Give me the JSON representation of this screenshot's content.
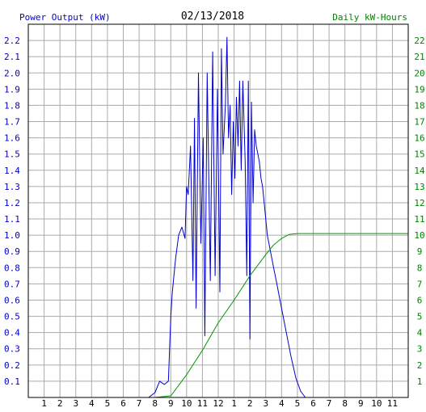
{
  "header": {
    "left_label": "Power Output (kW)",
    "date": "02/13/2018",
    "right_label": "Daily kW-Hours"
  },
  "colors": {
    "power": "#0000cc",
    "energy": "#009900",
    "grid": "#aaaaaa",
    "axis": "#000000",
    "left_text": "#0000cc",
    "right_text": "#008000"
  },
  "chart_data": {
    "type": "line",
    "grid": true,
    "x_tick_labels": [
      "1",
      "2",
      "3",
      "4",
      "5",
      "6",
      "7",
      "8",
      "9",
      "10",
      "11",
      "12",
      "1",
      "2",
      "3",
      "4",
      "5",
      "6",
      "7",
      "8",
      "9",
      "10",
      "11"
    ],
    "xlim": [
      0,
      24
    ],
    "y_left": {
      "label": "Power Output (kW)",
      "lim": [
        0,
        2.3
      ],
      "ticks": [
        "0.1",
        "0.2",
        "0.3",
        "0.4",
        "0.5",
        "0.6",
        "0.7",
        "0.8",
        "0.9",
        "1.0",
        "1.1",
        "1.2",
        "1.3",
        "1.4",
        "1.5",
        "1.6",
        "1.7",
        "1.8",
        "1.9",
        "2.0",
        "2.1",
        "2.2"
      ]
    },
    "y_right": {
      "label": "Daily kW-Hours",
      "lim": [
        0,
        23
      ],
      "ticks": [
        "1",
        "2",
        "3",
        "4",
        "5",
        "6",
        "7",
        "8",
        "9",
        "10",
        "11",
        "12",
        "13",
        "14",
        "15",
        "16",
        "17",
        "18",
        "19",
        "20",
        "21",
        "22"
      ]
    },
    "series": [
      {
        "axis": "left",
        "color": "#0000cc",
        "x": [
          0,
          7.6,
          8.0,
          8.3,
          8.6,
          8.85,
          9.0,
          9.1,
          9.3,
          9.5,
          9.7,
          9.9,
          10.0,
          10.1,
          10.25,
          10.4,
          10.5,
          10.6,
          10.75,
          10.9,
          11.05,
          11.15,
          11.3,
          11.5,
          11.65,
          11.8,
          11.95,
          12.1,
          12.2,
          12.3,
          12.45,
          12.55,
          12.65,
          12.75,
          12.85,
          12.95,
          13.05,
          13.15,
          13.25,
          13.35,
          13.45,
          13.55,
          13.7,
          13.8,
          13.9,
          14.0,
          14.1,
          14.2,
          14.3,
          14.4,
          14.5,
          14.6,
          14.7,
          14.8,
          14.95,
          15.1,
          15.3,
          15.5,
          15.7,
          16.0,
          16.3,
          16.6,
          16.9,
          17.2,
          17.5,
          17.7,
          17.85,
          18.0,
          24
        ],
        "y": [
          0,
          0,
          0.03,
          0.1,
          0.08,
          0.1,
          0.5,
          0.65,
          0.85,
          1.0,
          1.05,
          0.98,
          1.3,
          1.25,
          1.55,
          0.72,
          1.72,
          0.55,
          2.0,
          0.95,
          1.6,
          0.38,
          2.0,
          0.72,
          2.13,
          0.75,
          1.9,
          0.65,
          2.15,
          1.5,
          1.8,
          2.22,
          1.6,
          1.8,
          1.25,
          1.7,
          1.35,
          1.85,
          1.55,
          1.95,
          1.4,
          1.95,
          1.45,
          0.75,
          1.95,
          0.36,
          1.82,
          1.2,
          1.65,
          1.55,
          1.5,
          1.45,
          1.35,
          1.3,
          1.15,
          1.0,
          0.9,
          0.8,
          0.7,
          0.55,
          0.4,
          0.25,
          0.12,
          0.04,
          0,
          0,
          0,
          0,
          0
        ]
      },
      {
        "axis": "right",
        "color": "#009900",
        "x": [
          0,
          8.0,
          9.0,
          10.0,
          11.0,
          12.0,
          13.0,
          14.0,
          15.0,
          15.5,
          16.0,
          16.5,
          17.0,
          18.0,
          20.0,
          24
        ],
        "y": [
          0,
          0,
          0.1,
          1.4,
          2.9,
          4.6,
          6.0,
          7.5,
          8.8,
          9.4,
          9.8,
          10.05,
          10.1,
          10.1,
          10.1,
          10.1
        ]
      }
    ]
  }
}
